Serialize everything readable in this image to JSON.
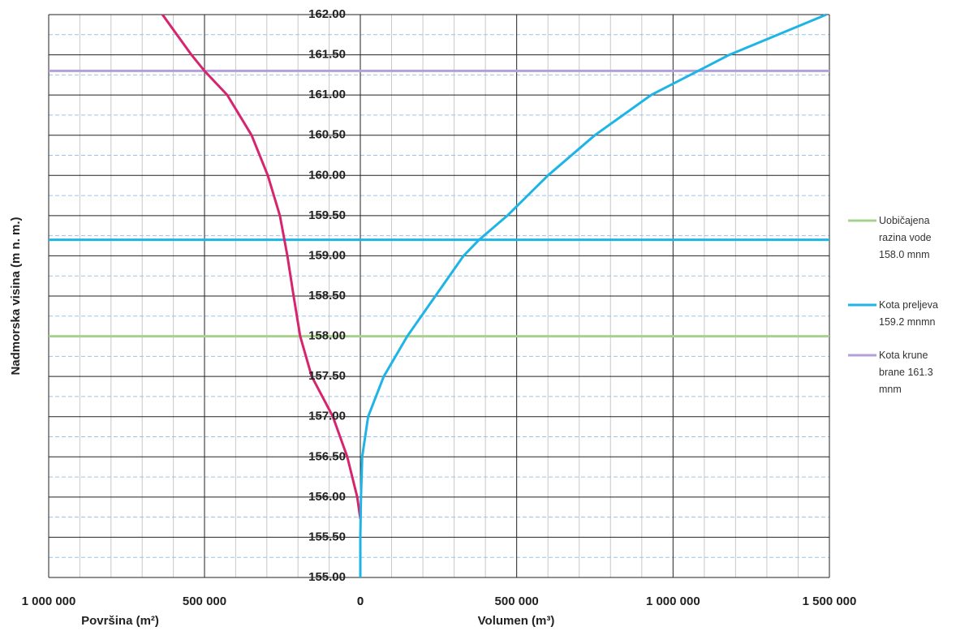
{
  "chart_data": {
    "type": "line",
    "y_title": "Nadmorska visina (m n. m.)",
    "area_title": "Površina (m²)",
    "volume_title": "Volumen (m³)",
    "ylim": [
      155,
      162
    ],
    "yticks": [
      {
        "value": 155,
        "label": "155.00"
      },
      {
        "value": 155.5,
        "label": "155.50"
      },
      {
        "value": 156,
        "label": "156.00"
      },
      {
        "value": 156.5,
        "label": "156.50"
      },
      {
        "value": 157,
        "label": "157.00"
      },
      {
        "value": 157.5,
        "label": "157.50"
      },
      {
        "value": 158,
        "label": "158.00"
      },
      {
        "value": 158.5,
        "label": "158.50"
      },
      {
        "value": 159,
        "label": "159.00"
      },
      {
        "value": 159.5,
        "label": "159.50"
      },
      {
        "value": 160,
        "label": "160.00"
      },
      {
        "value": 160.5,
        "label": "160.50"
      },
      {
        "value": 161,
        "label": "161.00"
      },
      {
        "value": 161.5,
        "label": "161.50"
      },
      {
        "value": 162,
        "label": "162.00"
      }
    ],
    "area_xlim": [
      1000000,
      0
    ],
    "area_xticks": [
      {
        "value": 1000000,
        "label": "1 000 000"
      },
      {
        "value": 500000,
        "label": "500 000"
      },
      0
    ],
    "xlim": [
      0,
      1500000
    ],
    "xticks": [
      0,
      {
        "value": 500000,
        "label": "500 000"
      },
      {
        "value": 1000000,
        "label": "1 000 000"
      },
      {
        "value": 1500000,
        "label": "1 500 000"
      }
    ],
    "grid": true,
    "series": [
      {
        "axis": "area",
        "color": "#d6246e",
        "elevation": [
          155.73,
          156.0,
          156.5,
          157.0,
          157.5,
          158.0,
          158.5,
          159.0,
          159.5,
          160.0,
          160.5,
          161.0,
          161.3,
          161.5,
          162.0
        ],
        "values": [
          0,
          10000,
          42000,
          88000,
          156000,
          193000,
          214000,
          234000,
          258000,
          297000,
          349000,
          427000,
          500000,
          542000,
          635000
        ]
      },
      {
        "axis": "volume",
        "color": "#1fb4e6",
        "elevation": [
          155.0,
          155.5,
          156.0,
          156.5,
          157.0,
          157.5,
          158.0,
          158.5,
          159.0,
          159.2,
          159.5,
          160.0,
          160.5,
          161.0,
          161.3,
          161.5,
          162.0
        ],
        "values": [
          0,
          0,
          2000,
          6000,
          25000,
          75000,
          150000,
          240000,
          330000,
          380000,
          470000,
          600000,
          750000,
          930000,
          1080000,
          1180000,
          1490000
        ]
      }
    ],
    "hlines": [
      {
        "name": "Uobičajena razina vode 158.0 mnm",
        "color": "#a9d18e",
        "value": 158.0
      },
      {
        "name": "Kota preljeva 159.2 mnmn",
        "color": "#1fb4e6",
        "value": 159.2
      },
      {
        "name": "Kota krune brane 161.3 mnm",
        "color": "#b4a0d8",
        "value": 161.3
      }
    ]
  }
}
